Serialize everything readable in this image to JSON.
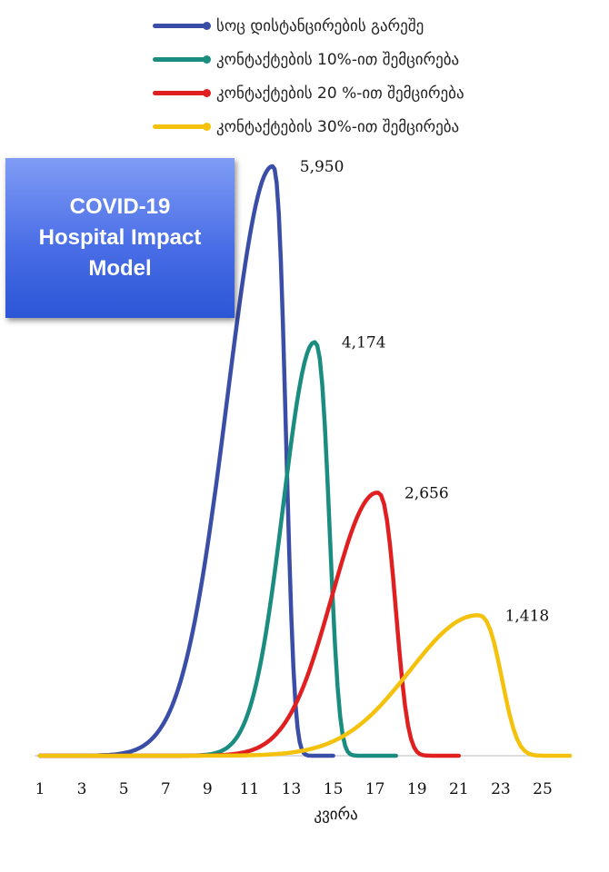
{
  "chart_data": {
    "type": "line",
    "xlabel": "კვირა",
    "x_ticks": [
      1,
      3,
      5,
      7,
      9,
      11,
      13,
      15,
      17,
      19,
      21,
      23,
      25
    ],
    "xlim": [
      1,
      26.5
    ],
    "ylim": [
      0,
      6000
    ],
    "grid": false,
    "legend_position": "top",
    "series": [
      {
        "name": "სოც დისტანცირების გარეშე",
        "color": "#3a4ea8",
        "peak_x": 12.1,
        "peak_y": 5950,
        "end_x": 15,
        "peak_label": "5,950"
      },
      {
        "name": "კონტაქტების 10%-ით შემცირება",
        "color": "#1b8c80",
        "peak_x": 14.1,
        "peak_y": 4174,
        "end_x": 18,
        "peak_label": "4,174"
      },
      {
        "name": "კონტაქტების 20 %-ით შემცირება",
        "color": "#e02020",
        "peak_x": 17.1,
        "peak_y": 2656,
        "end_x": 21,
        "peak_label": "2,656"
      },
      {
        "name": "კონტაქტების 30%-ით შემცირება",
        "color": "#f4c20d",
        "peak_x": 21.9,
        "peak_y": 1418,
        "end_x": 26.3,
        "peak_label": "1,418"
      }
    ]
  },
  "title_box": {
    "lines": [
      "COVID-19",
      "Hospital Impact",
      "Model"
    ]
  }
}
